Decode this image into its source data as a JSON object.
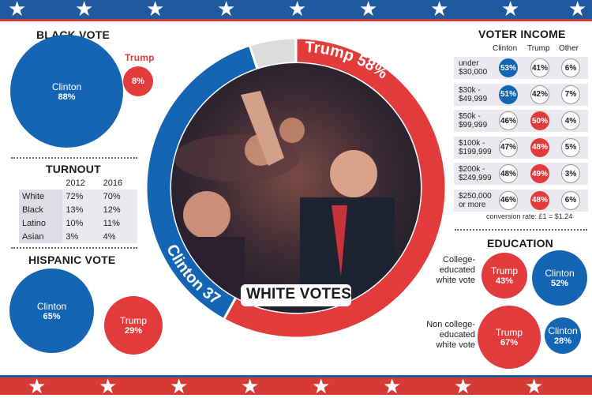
{
  "colors": {
    "clinton": "#1565b5",
    "trump": "#e23b3b",
    "grey": "#dcdcdc",
    "band_blue": "#1f5a9e",
    "band_red": "#d63a35"
  },
  "black_vote": {
    "title": "BLACK VOTE",
    "clinton_label": "Clinton",
    "clinton_value": "88%",
    "trump_label": "Trump",
    "trump_value": "8%"
  },
  "turnout": {
    "title": "TURNOUT",
    "years": [
      "2012",
      "2016"
    ],
    "rows": [
      {
        "group": "White",
        "y2012": "72%",
        "y2016": "70%"
      },
      {
        "group": "Black",
        "y2012": "13%",
        "y2016": "12%"
      },
      {
        "group": "Latino",
        "y2012": "10%",
        "y2016": "11%"
      },
      {
        "group": "Asian",
        "y2012": "3%",
        "y2016": "4%"
      }
    ]
  },
  "hispanic_vote": {
    "title": "HISPANIC VOTE",
    "clinton_label": "Clinton",
    "clinton_value": "65%",
    "trump_label": "Trump",
    "trump_value": "29%"
  },
  "white_votes": {
    "title": "WHITE VOTES",
    "trump_label": "Trump 58%",
    "clinton_label": "Clinton 37%"
  },
  "voter_income": {
    "title": "VOTER INCOME",
    "columns": [
      "Clinton",
      "Trump",
      "Other"
    ],
    "rows": [
      {
        "label": "under\n$30,000",
        "clinton": "53%",
        "trump": "41%",
        "other": "6%",
        "winner": "clinton"
      },
      {
        "label": "$30k -\n$49,999",
        "clinton": "51%",
        "trump": "42%",
        "other": "7%",
        "winner": "clinton"
      },
      {
        "label": "$50k -\n$99,999",
        "clinton": "46%",
        "trump": "50%",
        "other": "4%",
        "winner": "trump"
      },
      {
        "label": "$100k -\n$199,999",
        "clinton": "47%",
        "trump": "48%",
        "other": "5%",
        "winner": "trump"
      },
      {
        "label": "$200k -\n$249,999",
        "clinton": "48%",
        "trump": "49%",
        "other": "3%",
        "winner": "trump"
      },
      {
        "label": "$250,000\nor more",
        "clinton": "46%",
        "trump": "48%",
        "other": "6%",
        "winner": "trump"
      }
    ],
    "note": "conversion rate: £1 = $1.24"
  },
  "education": {
    "title": "EDUCATION",
    "groups": [
      {
        "label": "College-\neducated\nwhite vote",
        "trump_label": "Trump",
        "trump_value": "43%",
        "clinton_label": "Clinton",
        "clinton_value": "52%"
      },
      {
        "label": "Non college-\neducated\nwhite vote",
        "trump_label": "Trump",
        "trump_value": "67%",
        "clinton_label": "Clinton",
        "clinton_value": "28%"
      }
    ]
  },
  "chart_data": [
    {
      "type": "bar",
      "title": "BLACK VOTE",
      "categories": [
        "Clinton",
        "Trump"
      ],
      "values": [
        88,
        8
      ]
    },
    {
      "type": "table",
      "title": "TURNOUT",
      "columns": [
        "",
        "2012",
        "2016"
      ],
      "rows": [
        [
          "White",
          "72%",
          "70%"
        ],
        [
          "Black",
          "13%",
          "12%"
        ],
        [
          "Latino",
          "10%",
          "11%"
        ],
        [
          "Asian",
          "3%",
          "4%"
        ]
      ]
    },
    {
      "type": "bar",
      "title": "HISPANIC VOTE",
      "categories": [
        "Clinton",
        "Trump"
      ],
      "values": [
        65,
        29
      ]
    },
    {
      "type": "pie",
      "title": "WHITE VOTES",
      "categories": [
        "Trump",
        "Clinton",
        "Other"
      ],
      "values": [
        58,
        37,
        5
      ]
    },
    {
      "type": "table",
      "title": "VOTER INCOME",
      "columns": [
        "",
        "Clinton",
        "Trump",
        "Other"
      ],
      "rows": [
        [
          "under $30,000",
          "53%",
          "41%",
          "6%"
        ],
        [
          "$30k - $49,999",
          "51%",
          "42%",
          "7%"
        ],
        [
          "$50k - $99,999",
          "46%",
          "50%",
          "4%"
        ],
        [
          "$100k - $199,999",
          "47%",
          "48%",
          "5%"
        ],
        [
          "$200k - $249,999",
          "48%",
          "49%",
          "3%"
        ],
        [
          "$250,000 or more",
          "46%",
          "48%",
          "6%"
        ]
      ]
    },
    {
      "type": "bar",
      "title": "EDUCATION",
      "categories": [
        "College-educated white vote",
        "Non college-educated white vote"
      ],
      "series": [
        {
          "name": "Trump",
          "values": [
            43,
            67
          ]
        },
        {
          "name": "Clinton",
          "values": [
            52,
            28
          ]
        }
      ]
    }
  ]
}
